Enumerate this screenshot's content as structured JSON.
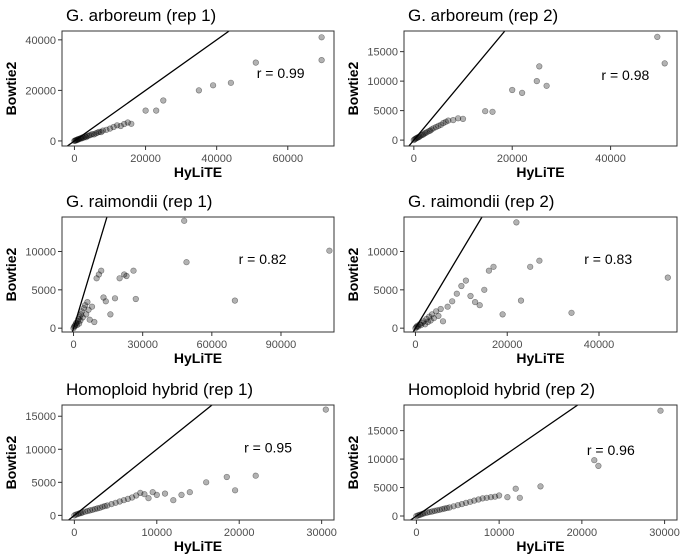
{
  "chart_data": [
    {
      "type": "scatter",
      "title": "G. arboreum (rep 1)",
      "xlabel": "HyLiTE",
      "ylabel": "Bowtie2",
      "xlim": [
        -3500,
        73000
      ],
      "ylim": [
        -2000,
        43500
      ],
      "xticks": [
        0,
        20000,
        40000,
        60000
      ],
      "xtick_labels": [
        "0",
        "20000",
        "40000",
        "60000"
      ],
      "yticks": [
        0,
        20000,
        40000
      ],
      "ytick_labels": [
        "0",
        "20000",
        "40000"
      ],
      "annotation": "r = 0.99",
      "annotation_pos": [
        58000,
        25000
      ],
      "grid": false,
      "identity_line": true,
      "points": [
        [
          0,
          0
        ],
        [
          200,
          150
        ],
        [
          400,
          300
        ],
        [
          600,
          250
        ],
        [
          800,
          500
        ],
        [
          1000,
          700
        ],
        [
          1200,
          600
        ],
        [
          1500,
          900
        ],
        [
          1800,
          1100
        ],
        [
          2000,
          1000
        ],
        [
          2300,
          1400
        ],
        [
          2600,
          1300
        ],
        [
          3000,
          1700
        ],
        [
          3300,
          1500
        ],
        [
          3600,
          2000
        ],
        [
          4000,
          2100
        ],
        [
          4500,
          2300
        ],
        [
          5000,
          2700
        ],
        [
          5500,
          2600
        ],
        [
          6000,
          3000
        ],
        [
          6500,
          3300
        ],
        [
          7000,
          3600
        ],
        [
          7500,
          3500
        ],
        [
          8000,
          4100
        ],
        [
          9000,
          4400
        ],
        [
          10000,
          4900
        ],
        [
          11000,
          5500
        ],
        [
          12000,
          6200
        ],
        [
          13000,
          5900
        ],
        [
          14000,
          6700
        ],
        [
          15000,
          7300
        ],
        [
          16000,
          6800
        ],
        [
          20000,
          12000
        ],
        [
          23000,
          12000
        ],
        [
          25000,
          16000
        ],
        [
          35000,
          20000
        ],
        [
          39000,
          22000
        ],
        [
          44000,
          23000
        ],
        [
          51000,
          31000
        ],
        [
          69500,
          41000
        ],
        [
          69500,
          32000
        ]
      ]
    },
    {
      "type": "scatter",
      "title": "G. arboreum (rep 2)",
      "xlabel": "HyLiTE",
      "ylabel": "Bowtie2",
      "xlim": [
        -2000,
        53500
      ],
      "ylim": [
        -1000,
        18500
      ],
      "xticks": [
        0,
        20000,
        40000
      ],
      "xtick_labels": [
        "0",
        "20000",
        "40000"
      ],
      "yticks": [
        0,
        5000,
        10000,
        15000
      ],
      "ytick_labels": [
        "0",
        "5000",
        "10000",
        "15000"
      ],
      "annotation": "r = 0.98",
      "annotation_pos": [
        43000,
        10200
      ],
      "grid": false,
      "identity_line": true,
      "points": [
        [
          0,
          0
        ],
        [
          200,
          150
        ],
        [
          400,
          250
        ],
        [
          600,
          350
        ],
        [
          800,
          450
        ],
        [
          1000,
          500
        ],
        [
          1200,
          650
        ],
        [
          1500,
          800
        ],
        [
          1800,
          900
        ],
        [
          2000,
          1000
        ],
        [
          2300,
          1200
        ],
        [
          2600,
          1300
        ],
        [
          3000,
          1500
        ],
        [
          3300,
          1600
        ],
        [
          3600,
          1800
        ],
        [
          4000,
          2000
        ],
        [
          4500,
          2200
        ],
        [
          5000,
          2400
        ],
        [
          5500,
          2600
        ],
        [
          6000,
          2900
        ],
        [
          6500,
          3100
        ],
        [
          7000,
          3300
        ],
        [
          8000,
          3400
        ],
        [
          9000,
          3700
        ],
        [
          10000,
          3600
        ],
        [
          14500,
          4900
        ],
        [
          16000,
          4800
        ],
        [
          20000,
          8500
        ],
        [
          22000,
          8000
        ],
        [
          25000,
          10000
        ],
        [
          25500,
          12500
        ],
        [
          27000,
          9200
        ],
        [
          49500,
          17500
        ],
        [
          51000,
          13000
        ]
      ]
    },
    {
      "type": "scatter",
      "title": "G. raimondii (rep 1)",
      "xlabel": "HyLiTE",
      "ylabel": "Bowtie2",
      "xlim": [
        -5000,
        113000
      ],
      "ylim": [
        -500,
        14500
      ],
      "xticks": [
        0,
        30000,
        60000,
        90000
      ],
      "xtick_labels": [
        "0",
        "30000",
        "60000",
        "90000"
      ],
      "yticks": [
        0,
        5000,
        10000
      ],
      "ytick_labels": [
        "0",
        "5000",
        "10000"
      ],
      "annotation": "r = 0.82",
      "annotation_pos": [
        82000,
        8400
      ],
      "grid": false,
      "identity_line": true,
      "points": [
        [
          0,
          0
        ],
        [
          300,
          200
        ],
        [
          600,
          300
        ],
        [
          900,
          500
        ],
        [
          1200,
          700
        ],
        [
          1500,
          400
        ],
        [
          1800,
          900
        ],
        [
          2100,
          1200
        ],
        [
          2400,
          600
        ],
        [
          2700,
          1500
        ],
        [
          3000,
          1000
        ],
        [
          3300,
          1800
        ],
        [
          3600,
          2200
        ],
        [
          4000,
          1400
        ],
        [
          4500,
          2600
        ],
        [
          5000,
          3000
        ],
        [
          5500,
          1800
        ],
        [
          6000,
          3400
        ],
        [
          6500,
          2400
        ],
        [
          7000,
          1100
        ],
        [
          8000,
          2800
        ],
        [
          9000,
          800
        ],
        [
          10000,
          6500
        ],
        [
          11000,
          7000
        ],
        [
          12000,
          7500
        ],
        [
          13000,
          4000
        ],
        [
          14000,
          3500
        ],
        [
          16000,
          1800
        ],
        [
          18000,
          3900
        ],
        [
          20000,
          6500
        ],
        [
          22000,
          7000
        ],
        [
          23000,
          6800
        ],
        [
          26000,
          7500
        ],
        [
          27000,
          3800
        ],
        [
          48000,
          14000
        ],
        [
          49000,
          8600
        ],
        [
          70000,
          3600
        ],
        [
          111000,
          10100
        ]
      ]
    },
    {
      "type": "scatter",
      "title": "G. raimondii (rep 2)",
      "xlabel": "HyLiTE",
      "ylabel": "Bowtie2",
      "xlim": [
        -2500,
        57000
      ],
      "ylim": [
        -500,
        14500
      ],
      "xticks": [
        0,
        20000,
        40000
      ],
      "xtick_labels": [
        "0",
        "20000",
        "40000"
      ],
      "yticks": [
        0,
        5000,
        10000
      ],
      "ytick_labels": [
        "0",
        "5000",
        "10000"
      ],
      "annotation": "r = 0.83",
      "annotation_pos": [
        42000,
        8400
      ],
      "grid": false,
      "identity_line": true,
      "points": [
        [
          0,
          0
        ],
        [
          200,
          150
        ],
        [
          400,
          300
        ],
        [
          600,
          200
        ],
        [
          900,
          500
        ],
        [
          1200,
          400
        ],
        [
          1500,
          700
        ],
        [
          1800,
          900
        ],
        [
          2100,
          500
        ],
        [
          2400,
          1200
        ],
        [
          2700,
          800
        ],
        [
          3000,
          1500
        ],
        [
          3300,
          1000
        ],
        [
          3600,
          1800
        ],
        [
          4000,
          1300
        ],
        [
          4500,
          2200
        ],
        [
          5000,
          1600
        ],
        [
          5500,
          2500
        ],
        [
          6000,
          900
        ],
        [
          7000,
          2800
        ],
        [
          8000,
          3500
        ],
        [
          9000,
          4500
        ],
        [
          10000,
          5500
        ],
        [
          11000,
          6200
        ],
        [
          12000,
          4200
        ],
        [
          13000,
          3400
        ],
        [
          14000,
          3000
        ],
        [
          15000,
          5000
        ],
        [
          16000,
          7500
        ],
        [
          17000,
          8000
        ],
        [
          19000,
          1800
        ],
        [
          22000,
          13800
        ],
        [
          23000,
          3600
        ],
        [
          25000,
          8000
        ],
        [
          27000,
          8800
        ],
        [
          34000,
          2000
        ],
        [
          55000,
          6600
        ]
      ]
    },
    {
      "type": "scatter",
      "title": "Homoploid hybrid (rep 1)",
      "xlabel": "HyLiTE",
      "ylabel": "Bowtie2",
      "xlim": [
        -1500,
        31500
      ],
      "ylim": [
        -700,
        16700
      ],
      "xticks": [
        0,
        10000,
        20000,
        30000
      ],
      "xtick_labels": [
        "0",
        "10000",
        "20000",
        "30000"
      ],
      "yticks": [
        0,
        5000,
        10000,
        15000
      ],
      "ytick_labels": [
        "0",
        "5000",
        "10000",
        "15000"
      ],
      "annotation": "r = 0.95",
      "annotation_pos": [
        23500,
        9500
      ],
      "grid": false,
      "identity_line": true,
      "points": [
        [
          0,
          0
        ],
        [
          200,
          120
        ],
        [
          400,
          200
        ],
        [
          600,
          300
        ],
        [
          800,
          350
        ],
        [
          1000,
          450
        ],
        [
          1300,
          550
        ],
        [
          1600,
          650
        ],
        [
          1900,
          750
        ],
        [
          2200,
          850
        ],
        [
          2500,
          950
        ],
        [
          2800,
          1050
        ],
        [
          3100,
          1150
        ],
        [
          3400,
          1300
        ],
        [
          3700,
          1400
        ],
        [
          4000,
          1500
        ],
        [
          4500,
          1700
        ],
        [
          5000,
          1900
        ],
        [
          5500,
          2100
        ],
        [
          6000,
          2300
        ],
        [
          6500,
          2500
        ],
        [
          7000,
          2700
        ],
        [
          7500,
          3000
        ],
        [
          8000,
          3400
        ],
        [
          8500,
          3200
        ],
        [
          9000,
          2600
        ],
        [
          9500,
          3500
        ],
        [
          10000,
          3100
        ],
        [
          11000,
          3300
        ],
        [
          12000,
          2300
        ],
        [
          13000,
          3100
        ],
        [
          14000,
          3500
        ],
        [
          16000,
          5000
        ],
        [
          18500,
          5800
        ],
        [
          19500,
          3800
        ],
        [
          22000,
          6000
        ],
        [
          30500,
          16000
        ]
      ]
    },
    {
      "type": "scatter",
      "title": "Homoploid hybrid (rep 2)",
      "xlabel": "HyLiTE",
      "ylabel": "Bowtie2",
      "xlim": [
        -1500,
        31500
      ],
      "ylim": [
        -700,
        19500
      ],
      "xticks": [
        0,
        10000,
        20000,
        30000
      ],
      "xtick_labels": [
        "0",
        "10000",
        "20000",
        "30000"
      ],
      "yticks": [
        0,
        5000,
        10000,
        15000
      ],
      "ytick_labels": [
        "0",
        "5000",
        "10000",
        "15000"
      ],
      "annotation": "r = 0.96",
      "annotation_pos": [
        23500,
        10700
      ],
      "grid": false,
      "identity_line": true,
      "points": [
        [
          0,
          0
        ],
        [
          200,
          100
        ],
        [
          400,
          200
        ],
        [
          600,
          300
        ],
        [
          800,
          400
        ],
        [
          1000,
          500
        ],
        [
          1300,
          600
        ],
        [
          1600,
          700
        ],
        [
          1900,
          800
        ],
        [
          2200,
          900
        ],
        [
          2500,
          1000
        ],
        [
          2800,
          1100
        ],
        [
          3100,
          1200
        ],
        [
          3400,
          1300
        ],
        [
          3700,
          1400
        ],
        [
          4000,
          1500
        ],
        [
          4500,
          1700
        ],
        [
          5000,
          1900
        ],
        [
          5500,
          2100
        ],
        [
          6000,
          2300
        ],
        [
          6500,
          2500
        ],
        [
          7000,
          2700
        ],
        [
          7500,
          2900
        ],
        [
          8000,
          3100
        ],
        [
          8500,
          3200
        ],
        [
          9000,
          3300
        ],
        [
          9500,
          3400
        ],
        [
          10000,
          3600
        ],
        [
          11000,
          3300
        ],
        [
          12000,
          4800
        ],
        [
          12500,
          3200
        ],
        [
          15000,
          5200
        ],
        [
          21500,
          9800
        ],
        [
          22000,
          8800
        ],
        [
          29500,
          18500
        ]
      ]
    }
  ]
}
